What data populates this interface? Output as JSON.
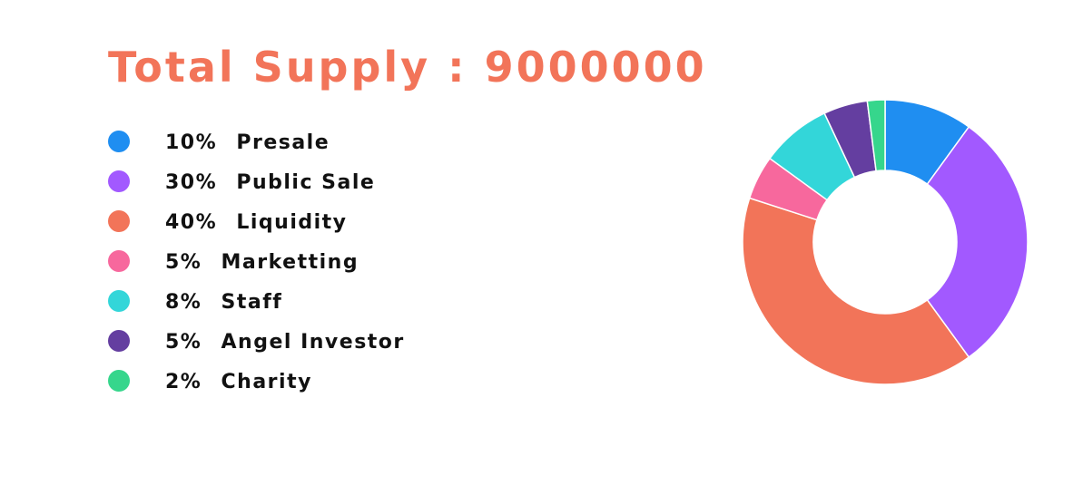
{
  "title": {
    "label": "Total Supply :",
    "value": "9000000"
  },
  "chart_data": {
    "type": "pie",
    "title": "Total Supply : 9000000",
    "donut": true,
    "legend_position": "left",
    "slices": [
      {
        "label": "Presale",
        "value": 10,
        "display": "10%",
        "color": "#1f8ef1"
      },
      {
        "label": "Public Sale",
        "value": 30,
        "display": "30%",
        "color": "#a259ff"
      },
      {
        "label": "Liquidity",
        "value": 40,
        "display": "40%",
        "color": "#f27459"
      },
      {
        "label": "Marketting",
        "value": 5,
        "display": "5%",
        "color": "#f7689d"
      },
      {
        "label": "Staff",
        "value": 8,
        "display": "8%",
        "color": "#33d6d9"
      },
      {
        "label": "Angel Investor",
        "value": 5,
        "display": "5%",
        "color": "#643ea0"
      },
      {
        "label": "Charity",
        "value": 2,
        "display": "2%",
        "color": "#36d68c"
      }
    ]
  }
}
